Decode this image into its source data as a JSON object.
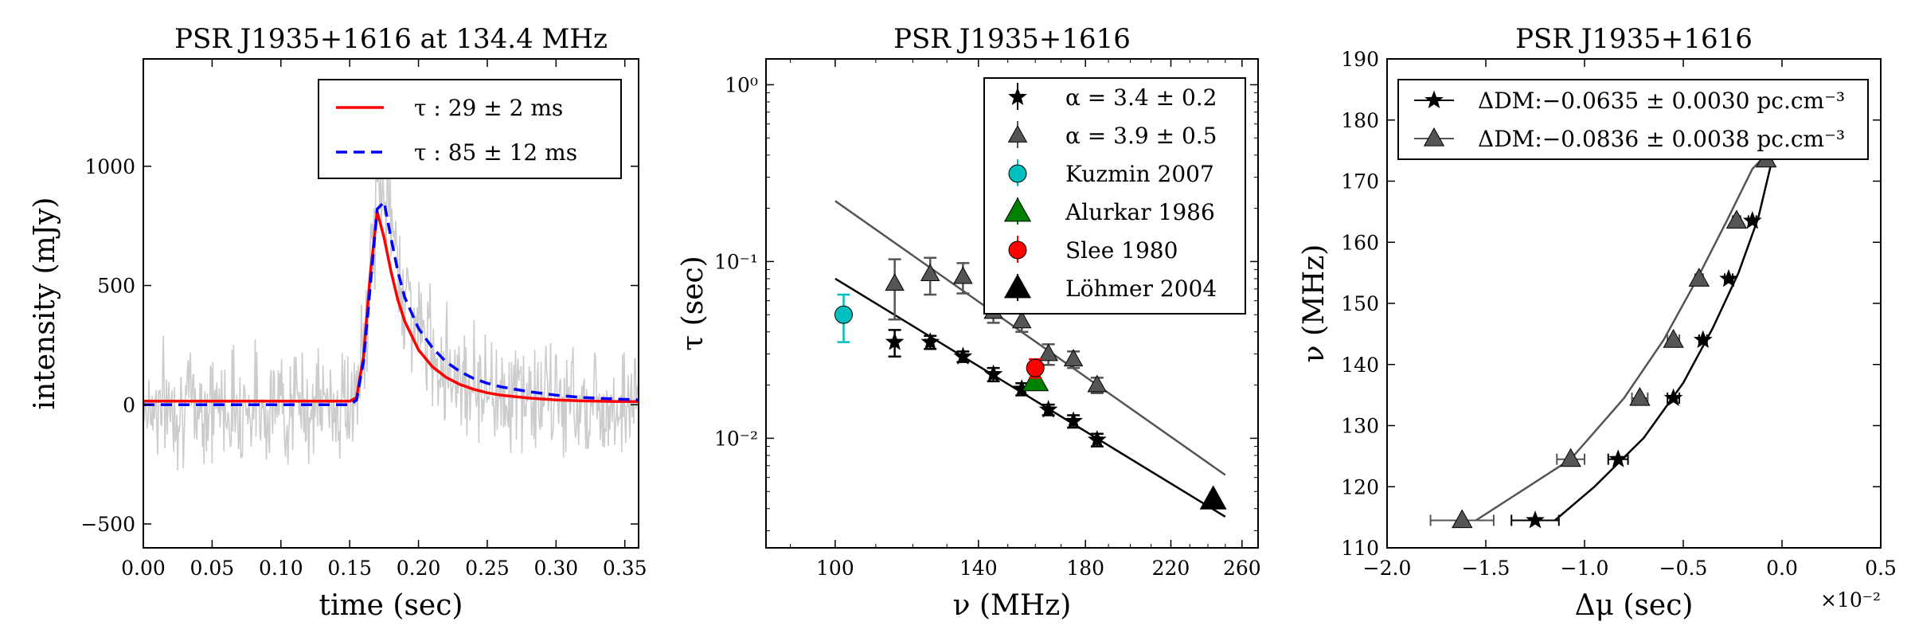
{
  "chart_data": [
    {
      "type": "line",
      "title": "PSR J1935+1616 at 134.4 MHz",
      "xlabel": "time (sec)",
      "ylabel": "intensity (mJy)",
      "xlim": [
        0.0,
        0.36
      ],
      "ylim": [
        -600,
        1450
      ],
      "xticks": [
        0.0,
        0.05,
        0.1,
        0.15,
        0.2,
        0.25,
        0.3,
        0.35
      ],
      "xticklabels": [
        "0.00",
        "0.05",
        "0.10",
        "0.15",
        "0.20",
        "0.25",
        "0.30",
        "0.35"
      ],
      "yticks": [
        -500,
        0,
        500,
        1000
      ],
      "yticklabels": [
        "−500",
        "0",
        "500",
        "1000"
      ],
      "legend_position": "top-right",
      "series": [
        {
          "name": "",
          "role": "data",
          "color": "#cccccc",
          "x": [
            0.0,
            0.02,
            0.04,
            0.06,
            0.08,
            0.1,
            0.12,
            0.14,
            0.15,
            0.155,
            0.16,
            0.165,
            0.17,
            0.175,
            0.18,
            0.185,
            0.19,
            0.2,
            0.21,
            0.22,
            0.23,
            0.24,
            0.25,
            0.26,
            0.28,
            0.3,
            0.32,
            0.34,
            0.36
          ],
          "y": [
            0,
            0,
            0,
            0,
            0,
            0,
            0,
            0,
            0,
            30,
            200,
            550,
            860,
            920,
            760,
            600,
            470,
            320,
            230,
            170,
            130,
            100,
            75,
            55,
            35,
            20,
            12,
            8,
            5
          ]
        },
        {
          "name": "τ : 29 ± 2 ms",
          "color": "#ff0000",
          "dash": "solid",
          "x": [
            0.0,
            0.05,
            0.1,
            0.15,
            0.155,
            0.16,
            0.165,
            0.17,
            0.175,
            0.18,
            0.185,
            0.19,
            0.2,
            0.21,
            0.22,
            0.23,
            0.24,
            0.25,
            0.26,
            0.28,
            0.3,
            0.32,
            0.34,
            0.36
          ],
          "y": [
            15,
            15,
            15,
            15,
            30,
            200,
            550,
            810,
            700,
            560,
            440,
            350,
            230,
            160,
            115,
            85,
            65,
            50,
            40,
            28,
            20,
            16,
            14,
            13
          ]
        },
        {
          "name": "τ : 85 ± 12 ms",
          "color": "#0000ff",
          "dash": "dashed",
          "x": [
            0.0,
            0.05,
            0.1,
            0.15,
            0.155,
            0.16,
            0.165,
            0.17,
            0.175,
            0.18,
            0.185,
            0.19,
            0.2,
            0.21,
            0.22,
            0.23,
            0.24,
            0.25,
            0.26,
            0.28,
            0.3,
            0.32,
            0.34,
            0.36
          ],
          "y": [
            0,
            0,
            0,
            0,
            20,
            180,
            500,
            820,
            850,
            700,
            560,
            450,
            320,
            240,
            180,
            140,
            110,
            90,
            75,
            55,
            40,
            30,
            25,
            20
          ]
        }
      ]
    },
    {
      "type": "scatter",
      "title": "PSR J1935+1616",
      "xlabel": "ν (MHz)",
      "ylabel": "τ (sec)",
      "xscale": "log",
      "yscale": "log",
      "xlim": [
        85,
        270
      ],
      "ylim": [
        0.0024,
        1.4
      ],
      "xticks": [
        100,
        140,
        180,
        220,
        260
      ],
      "xticklabels": [
        "100",
        "140",
        "180",
        "220",
        "260"
      ],
      "yticks": [
        0.01,
        0.1,
        1
      ],
      "yticklabels": [
        "10⁻²",
        "10⁻¹",
        "10⁰"
      ],
      "legend_position": "top-right",
      "series": [
        {
          "name": "α = 3.4 ± 0.2",
          "marker": "star",
          "color": "#000000",
          "x": [
            115,
            125,
            135,
            145,
            155,
            165,
            175,
            185
          ],
          "y": [
            0.035,
            0.035,
            0.029,
            0.023,
            0.019,
            0.0145,
            0.0125,
            0.0098
          ],
          "yerr": [
            0.006,
            0.003,
            0.002,
            0.002,
            0.0015,
            0.001,
            0.001,
            0.0008
          ]
        },
        {
          "name": "α = 3.9 ± 0.5",
          "marker": "triangle",
          "color": "#555555",
          "x": [
            115,
            125,
            135,
            145,
            155,
            165,
            175,
            185
          ],
          "y": [
            0.075,
            0.085,
            0.082,
            0.052,
            0.046,
            0.03,
            0.028,
            0.02
          ],
          "yerr": [
            0.028,
            0.02,
            0.016,
            0.007,
            0.006,
            0.004,
            0.003,
            0.002
          ]
        },
        {
          "name": "Kuzmin 2007",
          "marker": "circle",
          "color": "#00bfbf",
          "x": [
            102
          ],
          "y": [
            0.05
          ],
          "yerr": [
            0.015
          ]
        },
        {
          "name": "Alurkar 1986",
          "marker": "triangle",
          "color": "#008000",
          "x": [
            160
          ],
          "y": [
            0.021
          ],
          "yerr": [
            0.002
          ]
        },
        {
          "name": "Slee 1980",
          "marker": "circle",
          "color": "#ff0000",
          "x": [
            160
          ],
          "y": [
            0.025
          ],
          "yerr": [
            0.003
          ]
        },
        {
          "name": "Löhmer 2004",
          "marker": "triangle",
          "color": "#000000",
          "x": [
            243
          ],
          "y": [
            0.0045
          ],
          "yerr": [
            0
          ]
        }
      ],
      "fit_lines": [
        {
          "for": "α = 3.4 ± 0.2",
          "color": "#000000",
          "x": [
            100,
            250
          ],
          "y": [
            0.08,
            0.0036
          ]
        },
        {
          "for": "α = 3.9 ± 0.5",
          "color": "#555555",
          "x": [
            100,
            250
          ],
          "y": [
            0.22,
            0.0062
          ]
        }
      ]
    },
    {
      "type": "scatter",
      "title": "PSR J1935+1616",
      "xlabel": "Δμ (sec)",
      "ylabel": "ν (MHz)",
      "x_offset_label": "×10⁻²",
      "xlim": [
        -2.0,
        0.5
      ],
      "ylim": [
        110,
        190
      ],
      "xticks": [
        -2.0,
        -1.5,
        -1.0,
        -0.5,
        0.0,
        0.5
      ],
      "xticklabels": [
        "−2.0",
        "−1.5",
        "−1.0",
        "−0.5",
        "0.0",
        "0.5"
      ],
      "yticks": [
        110,
        120,
        130,
        140,
        150,
        160,
        170,
        180,
        190
      ],
      "yticklabels": [
        "110",
        "120",
        "130",
        "140",
        "150",
        "160",
        "170",
        "180",
        "190"
      ],
      "legend_position": "top",
      "series": [
        {
          "name": "ΔDM:−0.0635 ± 0.0030 pc.cm⁻³",
          "marker": "star",
          "color": "#000000",
          "x": [
            -1.25,
            -0.83,
            -0.55,
            -0.4,
            -0.27,
            -0.15,
            -0.07
          ],
          "y": [
            114.5,
            124.5,
            134.5,
            144,
            154,
            163.5,
            173.5
          ],
          "xerr": [
            0.12,
            0.05,
            0.03,
            0.02,
            0.02,
            0.02,
            0.01
          ],
          "curve_x": [
            -1.15,
            -0.95,
            -0.7,
            -0.5,
            -0.35,
            -0.22,
            -0.12,
            -0.05
          ],
          "curve_y": [
            114.5,
            120,
            128,
            137,
            146,
            155,
            164,
            173.5
          ]
        },
        {
          "name": "ΔDM:−0.0836 ± 0.0038 pc.cm⁻³",
          "marker": "triangle",
          "color": "#555555",
          "x": [
            -1.62,
            -1.07,
            -0.72,
            -0.55,
            -0.42,
            -0.23,
            -0.08
          ],
          "y": [
            114.5,
            124.5,
            134.5,
            144,
            154,
            163.5,
            173.5
          ],
          "xerr": [
            0.16,
            0.07,
            0.04,
            0.03,
            0.02,
            0.02,
            0.01
          ],
          "curve_x": [
            -1.55,
            -1.07,
            -0.8,
            -0.6,
            -0.43,
            -0.28,
            -0.15,
            -0.06
          ],
          "curve_y": [
            114.5,
            124.5,
            134.5,
            144,
            154,
            163.5,
            172,
            175
          ]
        }
      ]
    }
  ]
}
